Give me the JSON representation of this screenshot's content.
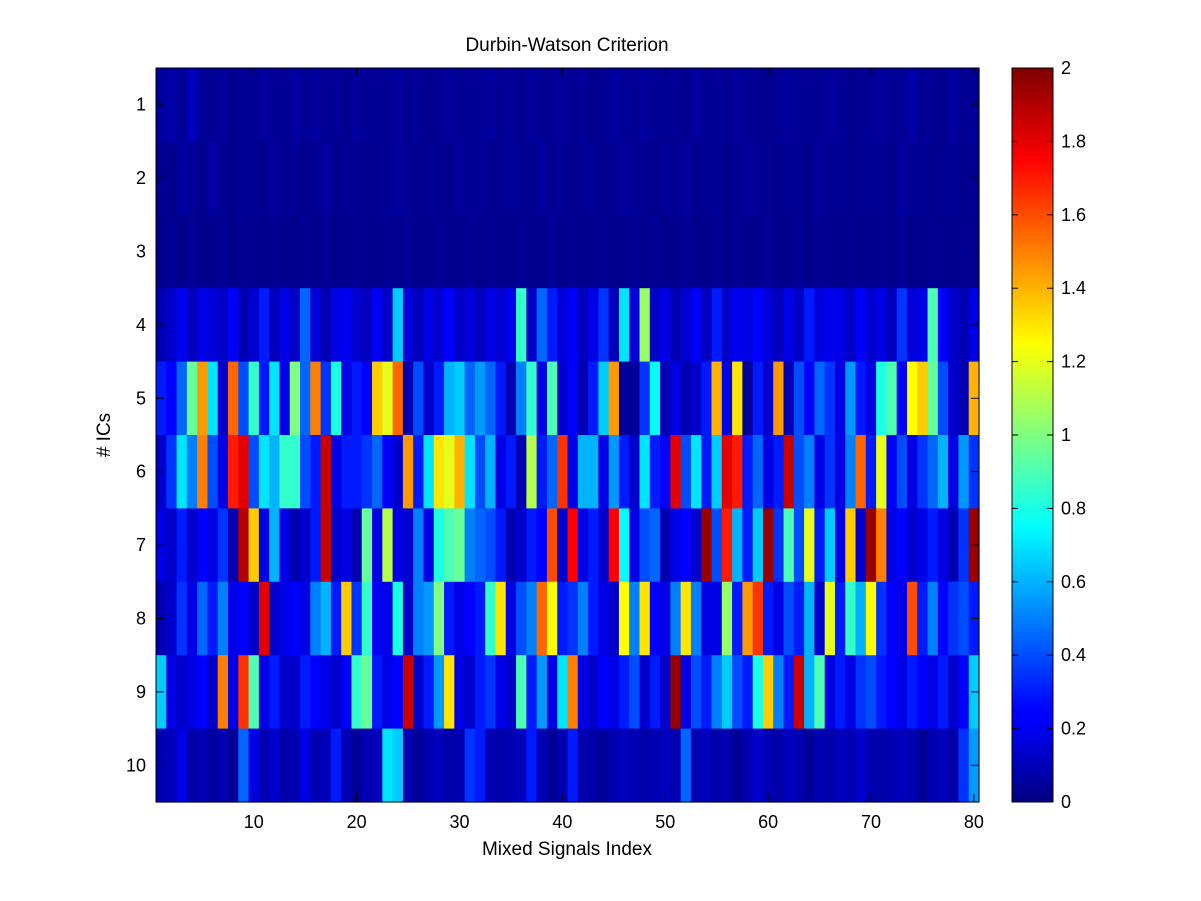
{
  "chart_data": {
    "type": "heatmap",
    "title": "Durbin-Watson Criterion",
    "xlabel": "Mixed Signals Index",
    "ylabel": "# ICs",
    "x_range": [
      1,
      80
    ],
    "y_range": [
      1,
      10
    ],
    "x_ticks": [
      "10",
      "20",
      "30",
      "40",
      "50",
      "60",
      "70",
      "80"
    ],
    "y_ticks": [
      "1",
      "2",
      "3",
      "4",
      "5",
      "6",
      "7",
      "8",
      "9",
      "10"
    ],
    "colorbar": {
      "colormap": "jet",
      "range": [
        0,
        2
      ],
      "ticks": [
        "0",
        "0.2",
        "0.4",
        "0.6",
        "0.8",
        "1",
        "1.2",
        "1.4",
        "1.6",
        "1.8",
        "2"
      ]
    },
    "grid": false,
    "rows": [
      {
        "ics": 1,
        "values": [
          0.06,
          0.08,
          0.05,
          0.12,
          0.05,
          0.04,
          0.06,
          0.03,
          0.05,
          0.04,
          0.06,
          0.05,
          0.04,
          0.07,
          0.05,
          0.06,
          0.04,
          0.05,
          0.03,
          0.06,
          0.05,
          0.04,
          0.05,
          0.06,
          0.04,
          0.05,
          0.03,
          0.04,
          0.06,
          0.05,
          0.04,
          0.05,
          0.06,
          0.04,
          0.05,
          0.03,
          0.06,
          0.04,
          0.05,
          0.06,
          0.04,
          0.05,
          0.03,
          0.04,
          0.06,
          0.05,
          0.04,
          0.06,
          0.05,
          0.04,
          0.05,
          0.03,
          0.06,
          0.04,
          0.05,
          0.04,
          0.06,
          0.05,
          0.04,
          0.03,
          0.05,
          0.06,
          0.04,
          0.05,
          0.04,
          0.06,
          0.05,
          0.03,
          0.04,
          0.05,
          0.06,
          0.04,
          0.05,
          0.08,
          0.04,
          0.05,
          0.03,
          0.06,
          0.04,
          0.05
        ]
      },
      {
        "ics": 2,
        "values": [
          0.04,
          0.03,
          0.06,
          0.05,
          0.03,
          0.07,
          0.04,
          0.03,
          0.05,
          0.04,
          0.03,
          0.06,
          0.04,
          0.05,
          0.03,
          0.04,
          0.06,
          0.03,
          0.05,
          0.04,
          0.03,
          0.04,
          0.05,
          0.06,
          0.04,
          0.03,
          0.05,
          0.04,
          0.03,
          0.06,
          0.04,
          0.05,
          0.03,
          0.04,
          0.05,
          0.04,
          0.03,
          0.06,
          0.04,
          0.05,
          0.03,
          0.04,
          0.05,
          0.03,
          0.04,
          0.06,
          0.05,
          0.04,
          0.03,
          0.05,
          0.04,
          0.06,
          0.03,
          0.04,
          0.05,
          0.03,
          0.04,
          0.06,
          0.05,
          0.04,
          0.03,
          0.05,
          0.04,
          0.03,
          0.06,
          0.04,
          0.05,
          0.03,
          0.04,
          0.05,
          0.04,
          0.03,
          0.06,
          0.04,
          0.05,
          0.03,
          0.04,
          0.05,
          0.03,
          0.04
        ]
      },
      {
        "ics": 3,
        "values": [
          0.03,
          0.04,
          0.03,
          0.04,
          0.03,
          0.03,
          0.04,
          0.03,
          0.04,
          0.03,
          0.03,
          0.04,
          0.03,
          0.03,
          0.04,
          0.03,
          0.04,
          0.03,
          0.03,
          0.04,
          0.03,
          0.03,
          0.04,
          0.03,
          0.04,
          0.03,
          0.03,
          0.04,
          0.03,
          0.03,
          0.04,
          0.03,
          0.04,
          0.03,
          0.03,
          0.04,
          0.03,
          0.03,
          0.04,
          0.03,
          0.04,
          0.03,
          0.03,
          0.04,
          0.03,
          0.03,
          0.04,
          0.03,
          0.04,
          0.03,
          0.03,
          0.04,
          0.03,
          0.03,
          0.04,
          0.03,
          0.04,
          0.03,
          0.03,
          0.04,
          0.03,
          0.03,
          0.04,
          0.03,
          0.04,
          0.03,
          0.03,
          0.04,
          0.03,
          0.03,
          0.04,
          0.03,
          0.04,
          0.03,
          0.03,
          0.04,
          0.03,
          0.03,
          0.04,
          0.03
        ]
      },
      {
        "ics": 4,
        "values": [
          0.1,
          0.15,
          0.22,
          0.12,
          0.2,
          0.18,
          0.14,
          0.25,
          0.1,
          0.16,
          0.3,
          0.12,
          0.2,
          0.14,
          0.45,
          0.18,
          0.1,
          0.2,
          0.22,
          0.16,
          0.12,
          0.24,
          0.14,
          0.65,
          0.18,
          0.12,
          0.2,
          0.16,
          0.25,
          0.14,
          0.18,
          0.12,
          0.2,
          0.16,
          0.22,
          0.85,
          0.14,
          0.45,
          0.3,
          0.18,
          0.25,
          0.12,
          0.2,
          0.35,
          0.12,
          0.7,
          0.18,
          1.05,
          0.14,
          0.2,
          0.1,
          0.16,
          0.25,
          0.12,
          0.3,
          0.14,
          0.22,
          0.2,
          0.25,
          0.18,
          0.12,
          0.2,
          0.14,
          0.3,
          0.18,
          0.22,
          0.2,
          0.14,
          0.25,
          0.16,
          0.2,
          0.12,
          0.35,
          0.18,
          0.2,
          0.9,
          0.25,
          0.15,
          0.1,
          0.2
        ]
      },
      {
        "ics": 5,
        "values": [
          0.3,
          0.25,
          0.45,
          0.95,
          1.45,
          0.7,
          0.15,
          1.55,
          0.4,
          0.85,
          0.3,
          0.7,
          0.2,
          1.0,
          0.45,
          1.5,
          0.35,
          0.8,
          0.2,
          0.3,
          0.25,
          1.35,
          1.2,
          1.55,
          0.1,
          0.4,
          0.15,
          0.3,
          0.6,
          0.65,
          0.45,
          0.55,
          0.45,
          0.3,
          0.1,
          0.5,
          0.85,
          0.2,
          0.9,
          0.15,
          0.25,
          0.1,
          0.3,
          0.65,
          1.45,
          0.05,
          0.05,
          0.35,
          0.75,
          0.1,
          0.2,
          0.1,
          0.15,
          0.3,
          1.4,
          0.2,
          1.3,
          0.05,
          0.3,
          0.15,
          1.45,
          0.1,
          0.4,
          0.25,
          0.45,
          0.35,
          0.2,
          0.55,
          0.3,
          0.2,
          0.8,
          0.9,
          0.25,
          1.25,
          1.35,
          0.95,
          0.4,
          0.15,
          0.1,
          1.4
        ]
      },
      {
        "ics": 6,
        "values": [
          0.15,
          0.35,
          0.7,
          0.5,
          1.5,
          0.4,
          0.2,
          1.7,
          1.8,
          0.4,
          0.7,
          0.6,
          0.85,
          0.85,
          0.4,
          0.3,
          1.85,
          0.2,
          0.3,
          0.3,
          0.35,
          0.45,
          0.25,
          0.15,
          1.45,
          0.3,
          0.7,
          1.3,
          1.2,
          1.4,
          0.7,
          0.4,
          0.6,
          0.2,
          0.3,
          0.1,
          1.1,
          0.3,
          0.45,
          1.65,
          0.2,
          0.6,
          0.6,
          0.2,
          0.55,
          0.3,
          0.15,
          0.7,
          0.3,
          0.25,
          1.8,
          0.4,
          0.7,
          0.3,
          0.65,
          1.8,
          1.7,
          0.3,
          0.45,
          0.2,
          0.3,
          1.85,
          0.4,
          0.5,
          0.2,
          0.35,
          0.2,
          0.5,
          1.55,
          0.3,
          1.2,
          0.25,
          0.4,
          0.2,
          0.35,
          0.45,
          0.6,
          0.2,
          0.55,
          0.35
        ]
      },
      {
        "ics": 7,
        "values": [
          0.2,
          0.15,
          0.3,
          0.15,
          0.25,
          0.2,
          0.35,
          0.1,
          1.9,
          1.35,
          0.2,
          0.6,
          0.2,
          0.1,
          0.15,
          0.3,
          1.85,
          0.15,
          0.2,
          0.1,
          0.95,
          0.2,
          1.1,
          0.2,
          0.15,
          0.5,
          0.2,
          0.8,
          0.9,
          0.95,
          0.5,
          0.45,
          0.4,
          0.3,
          0.1,
          0.15,
          0.3,
          0.25,
          1.6,
          0.15,
          1.75,
          0.2,
          0.3,
          0.15,
          1.75,
          0.75,
          0.2,
          0.4,
          0.45,
          0.1,
          0.2,
          0.25,
          0.15,
          1.95,
          0.4,
          1.7,
          0.6,
          0.3,
          0.65,
          1.95,
          0.35,
          0.9,
          0.4,
          1.2,
          0.3,
          0.65,
          0.2,
          1.35,
          0.15,
          1.95,
          1.5,
          0.2,
          0.25,
          0.15,
          0.2,
          0.3,
          0.2,
          0.1,
          0.35,
          1.95
        ]
      },
      {
        "ics": 8,
        "values": [
          0.1,
          0.15,
          0.35,
          0.2,
          0.45,
          0.3,
          0.5,
          0.2,
          0.25,
          0.15,
          1.8,
          0.15,
          0.2,
          0.25,
          0.2,
          0.5,
          0.6,
          0.3,
          1.35,
          0.35,
          0.85,
          0.25,
          0.2,
          0.8,
          0.15,
          0.5,
          0.55,
          1.0,
          0.3,
          0.2,
          0.25,
          0.3,
          0.85,
          1.3,
          0.2,
          0.4,
          0.5,
          1.55,
          1.25,
          0.3,
          0.35,
          0.5,
          0.3,
          0.2,
          0.15,
          1.25,
          0.5,
          1.3,
          0.25,
          0.2,
          0.5,
          1.3,
          0.5,
          0.2,
          0.2,
          1.05,
          0.3,
          1.45,
          1.65,
          0.3,
          0.2,
          0.4,
          0.3,
          0.6,
          0.15,
          1.2,
          0.3,
          0.85,
          0.6,
          1.25,
          0.35,
          0.25,
          0.2,
          1.6,
          0.3,
          0.5,
          0.25,
          0.35,
          0.4,
          0.3
        ]
      },
      {
        "ics": 9,
        "values": [
          0.65,
          0.2,
          0.15,
          0.2,
          0.25,
          0.15,
          1.5,
          0.2,
          1.65,
          0.9,
          0.2,
          0.3,
          0.15,
          0.15,
          0.3,
          0.25,
          0.2,
          0.15,
          0.25,
          0.85,
          0.95,
          0.3,
          0.2,
          0.25,
          1.85,
          0.15,
          0.3,
          0.55,
          1.3,
          0.2,
          0.15,
          0.3,
          0.35,
          0.2,
          0.15,
          0.9,
          0.3,
          0.55,
          0.2,
          0.7,
          1.5,
          0.2,
          0.15,
          0.25,
          0.2,
          0.3,
          0.4,
          0.15,
          0.3,
          0.15,
          1.95,
          0.2,
          0.4,
          0.3,
          0.5,
          0.65,
          0.4,
          0.3,
          0.8,
          1.35,
          0.5,
          0.3,
          1.85,
          0.6,
          0.9,
          0.2,
          0.3,
          0.2,
          0.35,
          0.4,
          0.3,
          0.25,
          0.2,
          0.3,
          0.25,
          0.2,
          0.3,
          0.15,
          0.25,
          0.65
        ]
      },
      {
        "ics": 10,
        "values": [
          0.1,
          0.12,
          0.2,
          0.08,
          0.1,
          0.06,
          0.1,
          0.05,
          0.45,
          0.2,
          0.1,
          0.15,
          0.08,
          0.1,
          0.2,
          0.1,
          0.12,
          0.3,
          0.1,
          0.05,
          0.1,
          0.12,
          0.7,
          0.65,
          0.1,
          0.05,
          0.1,
          0.12,
          0.08,
          0.1,
          0.35,
          0.3,
          0.1,
          0.08,
          0.1,
          0.12,
          0.3,
          0.1,
          0.05,
          0.1,
          0.3,
          0.1,
          0.08,
          0.05,
          0.1,
          0.12,
          0.1,
          0.08,
          0.1,
          0.12,
          0.1,
          0.45,
          0.1,
          0.12,
          0.08,
          0.1,
          0.05,
          0.1,
          0.15,
          0.1,
          0.08,
          0.12,
          0.1,
          0.05,
          0.1,
          0.08,
          0.12,
          0.1,
          0.15,
          0.1,
          0.08,
          0.1,
          0.12,
          0.1,
          0.05,
          0.1,
          0.12,
          0.08,
          0.35,
          0.55
        ]
      }
    ]
  }
}
